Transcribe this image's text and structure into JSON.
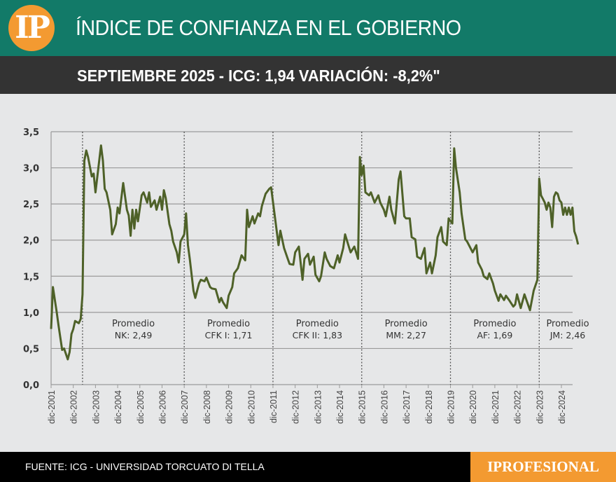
{
  "header": {
    "logo": "IP",
    "title": "ÍNDICE DE CONFIANZA EN EL GOBIERNO",
    "subtitle": "SEPTIEMBRE 2025 - ICG: 1,94 VARIACIÓN: -8,2%\""
  },
  "footer": {
    "source": "FUENTE: ICG - UNIVERSIDAD TORCUATO DI TELLA",
    "brand": "IPROFESIONAL"
  },
  "colors": {
    "header_bg": "#127a68",
    "band_bg": "#333333",
    "accent_orange": "#f39a31",
    "line": "#4e6128",
    "plot_bg": "#e6e7e8"
  },
  "chart_data": {
    "type": "line",
    "title": "",
    "xlabel": "",
    "ylabel": "",
    "ylim": [
      0,
      3.5
    ],
    "y_ticks": [
      "0,0",
      "0,5",
      "1,0",
      "1,5",
      "2,0",
      "2,5",
      "3,0",
      "3,5"
    ],
    "x_ticks": [
      "dic-2001",
      "dic-2002",
      "dic-2003",
      "dic-2004",
      "dic-2005",
      "dic-2006",
      "dic-2007",
      "dic-2008",
      "dic-2009",
      "dic-2010",
      "dic-2011",
      "dic-2012",
      "dic-2013",
      "dic-2014",
      "dic-2015",
      "dic-2016",
      "dic-2017",
      "dic-2018",
      "dic-2019",
      "dic-2020",
      "dic-2021",
      "dic-2022",
      "dic-2023",
      "dic-2024"
    ],
    "grid": "horizontal",
    "legend": "none",
    "period_boundaries": [
      "2003-05",
      "2007-12",
      "2011-12",
      "2015-12",
      "2019-12",
      "2023-12"
    ],
    "annotations": [
      {
        "line1": "Promedio",
        "line2": "NK: 2,49",
        "from": "2003-05",
        "to": "2007-12"
      },
      {
        "line1": "Promedio",
        "line2": "CFK I: 1,71",
        "from": "2007-12",
        "to": "2011-12"
      },
      {
        "line1": "Promedio",
        "line2": "CFK II: 1,83",
        "from": "2011-12",
        "to": "2015-12"
      },
      {
        "line1": "Promedio",
        "line2": "MM: 2,27",
        "from": "2015-12",
        "to": "2019-12"
      },
      {
        "line1": "Promedio",
        "line2": "AF: 1,69",
        "from": "2019-12",
        "to": "2023-12"
      },
      {
        "line1": "Promedio",
        "line2": "JM: 2,46",
        "from": "2023-12",
        "to": "2025-09"
      }
    ],
    "series": [
      {
        "points": [
          [
            "2001-12",
            0.77
          ],
          [
            "2002-01",
            1.35
          ],
          [
            "2002-03",
            1.01
          ],
          [
            "2002-04",
            0.82
          ],
          [
            "2002-06",
            0.48
          ],
          [
            "2002-07",
            0.5
          ],
          [
            "2002-09",
            0.35
          ],
          [
            "2002-10",
            0.45
          ],
          [
            "2002-11",
            0.7
          ],
          [
            "2002-12",
            0.77
          ],
          [
            "2003-01",
            0.88
          ],
          [
            "2003-03",
            0.85
          ],
          [
            "2003-04",
            0.91
          ],
          [
            "2003-05",
            1.25
          ],
          [
            "2003-06",
            3.1
          ],
          [
            "2003-07",
            3.24
          ],
          [
            "2003-08",
            3.15
          ],
          [
            "2003-10",
            2.88
          ],
          [
            "2003-11",
            2.92
          ],
          [
            "2003-12",
            2.66
          ],
          [
            "2004-03",
            3.31
          ],
          [
            "2004-04",
            3.1
          ],
          [
            "2004-05",
            2.71
          ],
          [
            "2004-06",
            2.66
          ],
          [
            "2004-08",
            2.42
          ],
          [
            "2004-09",
            2.08
          ],
          [
            "2004-11",
            2.22
          ],
          [
            "2004-12",
            2.45
          ],
          [
            "2005-01",
            2.37
          ],
          [
            "2005-03",
            2.79
          ],
          [
            "2005-05",
            2.42
          ],
          [
            "2005-06",
            2.34
          ],
          [
            "2005-07",
            2.06
          ],
          [
            "2005-08",
            2.42
          ],
          [
            "2005-09",
            2.16
          ],
          [
            "2005-10",
            2.42
          ],
          [
            "2005-11",
            2.26
          ],
          [
            "2006-01",
            2.62
          ],
          [
            "2006-02",
            2.66
          ],
          [
            "2006-04",
            2.52
          ],
          [
            "2006-05",
            2.66
          ],
          [
            "2006-06",
            2.46
          ],
          [
            "2006-08",
            2.55
          ],
          [
            "2006-09",
            2.42
          ],
          [
            "2006-11",
            2.6
          ],
          [
            "2006-12",
            2.42
          ],
          [
            "2007-01",
            2.69
          ],
          [
            "2007-02",
            2.58
          ],
          [
            "2007-04",
            2.22
          ],
          [
            "2007-05",
            2.13
          ],
          [
            "2007-06",
            1.98
          ],
          [
            "2007-08",
            1.83
          ],
          [
            "2007-09",
            1.69
          ],
          [
            "2007-10",
            1.98
          ],
          [
            "2007-12",
            2.08
          ],
          [
            "2008-01",
            2.37
          ],
          [
            "2008-02",
            1.93
          ],
          [
            "2008-03",
            1.74
          ],
          [
            "2008-05",
            1.3
          ],
          [
            "2008-06",
            1.2
          ],
          [
            "2008-08",
            1.4
          ],
          [
            "2008-09",
            1.45
          ],
          [
            "2008-11",
            1.43
          ],
          [
            "2008-12",
            1.48
          ],
          [
            "2009-02",
            1.35
          ],
          [
            "2009-03",
            1.33
          ],
          [
            "2009-05",
            1.32
          ],
          [
            "2009-07",
            1.14
          ],
          [
            "2009-08",
            1.2
          ],
          [
            "2009-09",
            1.14
          ],
          [
            "2009-11",
            1.06
          ],
          [
            "2009-12",
            1.23
          ],
          [
            "2010-02",
            1.35
          ],
          [
            "2010-03",
            1.54
          ],
          [
            "2010-05",
            1.61
          ],
          [
            "2010-07",
            1.79
          ],
          [
            "2010-09",
            1.72
          ],
          [
            "2010-10",
            2.42
          ],
          [
            "2010-11",
            2.18
          ],
          [
            "2011-01",
            2.33
          ],
          [
            "2011-02",
            2.23
          ],
          [
            "2011-04",
            2.37
          ],
          [
            "2011-05",
            2.33
          ],
          [
            "2011-06",
            2.47
          ],
          [
            "2011-08",
            2.64
          ],
          [
            "2011-10",
            2.71
          ],
          [
            "2011-11",
            2.73
          ],
          [
            "2012-01",
            2.33
          ],
          [
            "2012-03",
            1.93
          ],
          [
            "2012-04",
            2.13
          ],
          [
            "2012-06",
            1.89
          ],
          [
            "2012-08",
            1.74
          ],
          [
            "2012-09",
            1.67
          ],
          [
            "2012-11",
            1.66
          ],
          [
            "2012-12",
            1.83
          ],
          [
            "2013-02",
            1.91
          ],
          [
            "2013-04",
            1.45
          ],
          [
            "2013-05",
            1.74
          ],
          [
            "2013-07",
            1.81
          ],
          [
            "2013-08",
            1.66
          ],
          [
            "2013-10",
            1.77
          ],
          [
            "2013-11",
            1.52
          ],
          [
            "2014-01",
            1.43
          ],
          [
            "2014-02",
            1.5
          ],
          [
            "2014-04",
            1.83
          ],
          [
            "2014-05",
            1.74
          ],
          [
            "2014-07",
            1.64
          ],
          [
            "2014-09",
            1.61
          ],
          [
            "2014-11",
            1.79
          ],
          [
            "2014-12",
            1.69
          ],
          [
            "2015-02",
            1.89
          ],
          [
            "2015-03",
            2.08
          ],
          [
            "2015-05",
            1.91
          ],
          [
            "2015-06",
            1.83
          ],
          [
            "2015-08",
            1.91
          ],
          [
            "2015-10",
            1.74
          ],
          [
            "2015-11",
            3.15
          ],
          [
            "2015-12",
            2.9
          ],
          [
            "2016-01",
            3.03
          ],
          [
            "2016-02",
            2.66
          ],
          [
            "2016-04",
            2.62
          ],
          [
            "2016-05",
            2.66
          ],
          [
            "2016-07",
            2.52
          ],
          [
            "2016-09",
            2.62
          ],
          [
            "2016-10",
            2.52
          ],
          [
            "2016-12",
            2.42
          ],
          [
            "2017-01",
            2.33
          ],
          [
            "2017-03",
            2.6
          ],
          [
            "2017-04",
            2.42
          ],
          [
            "2017-06",
            2.23
          ],
          [
            "2017-08",
            2.84
          ],
          [
            "2017-09",
            2.95
          ],
          [
            "2017-11",
            2.33
          ],
          [
            "2017-12",
            2.3
          ],
          [
            "2018-02",
            2.3
          ],
          [
            "2018-03",
            2.04
          ],
          [
            "2018-05",
            2.01
          ],
          [
            "2018-06",
            1.77
          ],
          [
            "2018-08",
            1.74
          ],
          [
            "2018-10",
            1.89
          ],
          [
            "2018-11",
            1.54
          ],
          [
            "2019-01",
            1.69
          ],
          [
            "2019-02",
            1.54
          ],
          [
            "2019-04",
            1.79
          ],
          [
            "2019-05",
            2.04
          ],
          [
            "2019-07",
            2.18
          ],
          [
            "2019-08",
            1.98
          ],
          [
            "2019-10",
            1.93
          ],
          [
            "2019-11",
            2.3
          ],
          [
            "2020-01",
            2.23
          ],
          [
            "2020-02",
            3.27
          ],
          [
            "2020-03",
            3.0
          ],
          [
            "2020-05",
            2.66
          ],
          [
            "2020-06",
            2.37
          ],
          [
            "2020-08",
            2.01
          ],
          [
            "2020-09",
            1.98
          ],
          [
            "2020-11",
            1.88
          ],
          [
            "2020-12",
            1.83
          ],
          [
            "2021-02",
            1.93
          ],
          [
            "2021-03",
            1.69
          ],
          [
            "2021-05",
            1.59
          ],
          [
            "2021-06",
            1.5
          ],
          [
            "2021-08",
            1.46
          ],
          [
            "2021-09",
            1.54
          ],
          [
            "2021-11",
            1.4
          ],
          [
            "2021-12",
            1.3
          ],
          [
            "2022-02",
            1.16
          ],
          [
            "2022-03",
            1.25
          ],
          [
            "2022-05",
            1.17
          ],
          [
            "2022-06",
            1.23
          ],
          [
            "2022-08",
            1.16
          ],
          [
            "2022-10",
            1.08
          ],
          [
            "2022-11",
            1.11
          ],
          [
            "2022-12",
            1.25
          ],
          [
            "2023-02",
            1.06
          ],
          [
            "2023-04",
            1.25
          ],
          [
            "2023-07",
            1.03
          ],
          [
            "2023-09",
            1.3
          ],
          [
            "2023-11",
            1.45
          ],
          [
            "2023-12",
            2.85
          ],
          [
            "2024-01",
            2.62
          ],
          [
            "2024-02",
            2.57
          ],
          [
            "2024-03",
            2.52
          ],
          [
            "2024-04",
            2.42
          ],
          [
            "2024-05",
            2.52
          ],
          [
            "2024-06",
            2.45
          ],
          [
            "2024-07",
            2.18
          ],
          [
            "2024-08",
            2.6
          ],
          [
            "2024-09",
            2.66
          ],
          [
            "2024-10",
            2.64
          ],
          [
            "2024-11",
            2.55
          ],
          [
            "2024-12",
            2.52
          ],
          [
            "2025-01",
            2.35
          ],
          [
            "2025-02",
            2.45
          ],
          [
            "2025-03",
            2.35
          ],
          [
            "2025-04",
            2.45
          ],
          [
            "2025-05",
            2.35
          ],
          [
            "2025-06",
            2.45
          ],
          [
            "2025-07",
            2.12
          ],
          [
            "2025-08",
            2.05
          ],
          [
            "2025-09",
            1.94
          ]
        ]
      }
    ]
  }
}
